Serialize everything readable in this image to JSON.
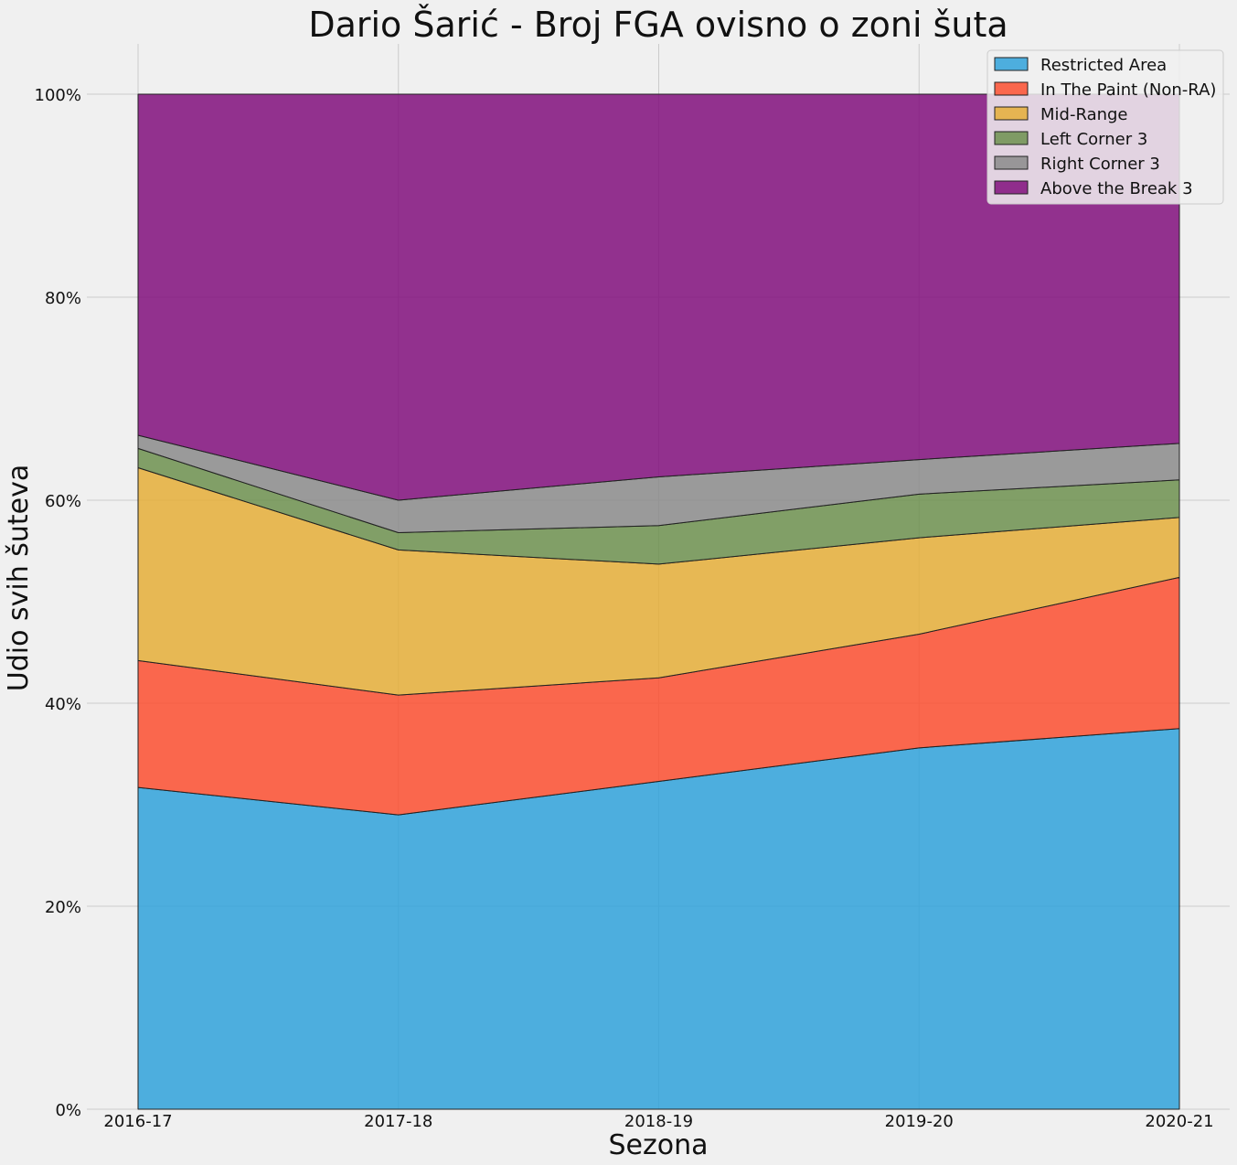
{
  "chart_data": {
    "type": "area",
    "stacked": true,
    "normalized": true,
    "title": "Dario Šarić - Broj FGA ovisno o zoni šuta",
    "xlabel": "Sezona",
    "ylabel": "Udio svih šuteva",
    "categories": [
      "2016-17",
      "2017-18",
      "2018-19",
      "2019-20",
      "2020-21"
    ],
    "ylim": [
      0,
      100
    ],
    "y_ticks": [
      "0%",
      "20%",
      "40%",
      "60%",
      "80%",
      "100%"
    ],
    "grid": true,
    "legend_position": "top-right",
    "series": [
      {
        "name": "Restricted Area",
        "color": "#30a2da",
        "values": [
          31.7,
          29.0,
          32.3,
          35.6,
          37.5
        ]
      },
      {
        "name": "In The Paint (Non-RA)",
        "color": "#fc4f30",
        "values": [
          12.5,
          11.8,
          10.2,
          11.2,
          14.9
        ]
      },
      {
        "name": "Mid-Range",
        "color": "#e5ae38",
        "values": [
          19.0,
          14.3,
          11.2,
          9.5,
          5.9
        ]
      },
      {
        "name": "Left Corner 3",
        "color": "#6d904f",
        "values": [
          1.9,
          1.7,
          3.8,
          4.3,
          3.7
        ]
      },
      {
        "name": "Right Corner 3",
        "color": "#8b8b8b",
        "values": [
          1.3,
          3.2,
          4.8,
          3.4,
          3.6
        ]
      },
      {
        "name": "Above the Break 3",
        "color": "#810f7c",
        "values": [
          33.6,
          40.0,
          37.7,
          36.0,
          34.4
        ]
      }
    ]
  }
}
